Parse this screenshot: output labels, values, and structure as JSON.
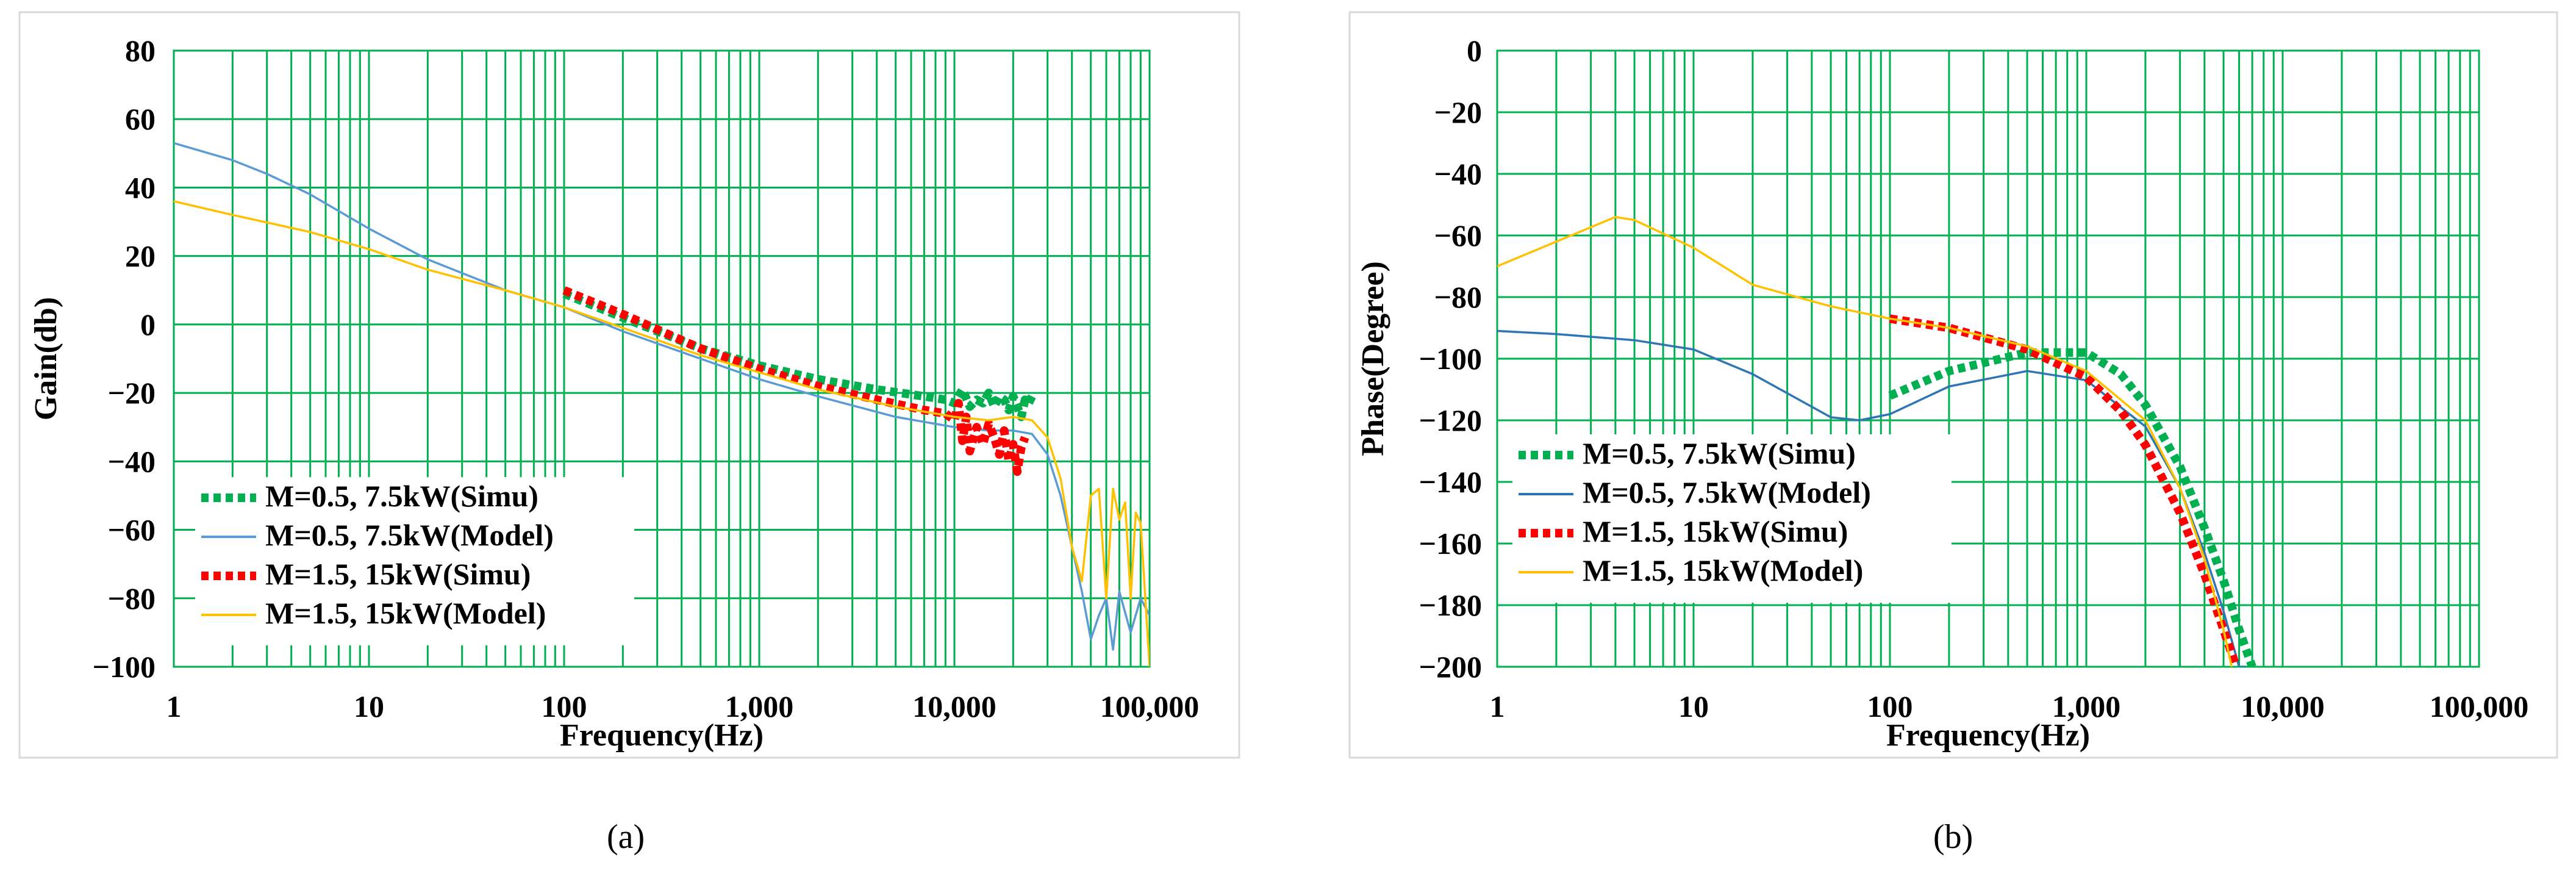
{
  "chart_data": [
    {
      "panel": "a",
      "type": "line",
      "x_scale": "log",
      "xlabel": "Frequency(Hz)",
      "ylabel": "Gain(db)",
      "xlim": [
        1,
        100000
      ],
      "ylim": [
        -100,
        80
      ],
      "x_ticks": [
        1,
        10,
        100,
        1000,
        10000,
        100000
      ],
      "x_tick_labels": [
        "1",
        "10",
        "100",
        "1,000",
        "10,000",
        "100,000"
      ],
      "y_ticks": [
        -100,
        -80,
        -60,
        -40,
        -20,
        0,
        20,
        40,
        60,
        80
      ],
      "y_tick_labels": [
        "−100",
        "−80",
        "−60",
        "−40",
        "−20",
        "0",
        "20",
        "40",
        "60",
        "80"
      ],
      "grid": true,
      "legend_position": "bottom-left",
      "series": [
        {
          "name": "M=0.5, 7.5kW(Simu)",
          "color": "#00b050",
          "style": "dotted-thick",
          "x": [
            100,
            200,
            500,
            1000,
            2000,
            4000,
            7000,
            9000,
            10000,
            11000,
            12000,
            13000,
            14000,
            15000,
            16000,
            17000,
            18000,
            19000,
            20000,
            21000,
            22000,
            23000,
            24000,
            25000
          ],
          "y": [
            9,
            2,
            -7,
            -12,
            -16,
            -19,
            -21,
            -22,
            -23,
            -19,
            -24,
            -22,
            -23,
            -20,
            -24,
            -21,
            -22,
            -25,
            -21,
            -24,
            -27,
            -22,
            -23,
            -21
          ]
        },
        {
          "name": "M=0.5, 7.5kW(Model)",
          "color": "#5b9bd5",
          "style": "thin",
          "x": [
            1,
            2,
            3,
            5,
            10,
            20,
            50,
            100,
            200,
            500,
            1000,
            2000,
            5000,
            10000,
            15000,
            20000,
            25000,
            30000,
            35000,
            40000,
            45000,
            50000,
            55000,
            60000,
            65000,
            70000,
            80000,
            90000,
            100000
          ],
          "y": [
            53,
            48,
            44,
            38,
            28,
            19,
            10,
            5,
            -2,
            -10,
            -16,
            -21,
            -27,
            -30,
            -31,
            -31,
            -32,
            -38,
            -50,
            -65,
            -78,
            -92,
            -85,
            -80,
            -95,
            -78,
            -90,
            -80,
            -85
          ]
        },
        {
          "name": "M=1.5, 15kW(Simu)",
          "color": "#ff0000",
          "style": "dotted-thick",
          "x": [
            100,
            200,
            500,
            1000,
            2000,
            4000,
            7000,
            9000,
            10000,
            10500,
            11000,
            11500,
            12000,
            13000,
            14000,
            15000,
            16000,
            17000,
            18000,
            19000,
            20000,
            21000,
            22000,
            23000
          ],
          "y": [
            10,
            3,
            -7,
            -13,
            -18,
            -22,
            -25,
            -26,
            -28,
            -23,
            -34,
            -27,
            -37,
            -30,
            -35,
            -29,
            -33,
            -38,
            -31,
            -40,
            -35,
            -43,
            -36,
            -33
          ]
        },
        {
          "name": "M=1.5, 15kW(Model)",
          "color": "#ffc000",
          "style": "thin",
          "x": [
            1,
            2,
            5,
            10,
            20,
            50,
            100,
            200,
            500,
            1000,
            2000,
            5000,
            10000,
            15000,
            20000,
            25000,
            30000,
            35000,
            40000,
            45000,
            50000,
            55000,
            60000,
            65000,
            70000,
            75000,
            80000,
            85000,
            90000,
            100000
          ],
          "y": [
            36,
            32,
            27,
            22,
            16,
            10,
            5,
            -1,
            -9,
            -14,
            -19,
            -24,
            -27,
            -28,
            -27,
            -28,
            -33,
            -45,
            -65,
            -75,
            -50,
            -48,
            -80,
            -48,
            -57,
            -52,
            -80,
            -55,
            -58,
            -100
          ]
        }
      ]
    },
    {
      "panel": "b",
      "type": "line",
      "x_scale": "log",
      "xlabel": "Frequency(Hz)",
      "ylabel": "Phase(Degree)",
      "xlim": [
        1,
        100000
      ],
      "ylim": [
        -200,
        0
      ],
      "x_ticks": [
        1,
        10,
        100,
        1000,
        10000,
        100000
      ],
      "x_tick_labels": [
        "1",
        "10",
        "100",
        "1,000",
        "10,000",
        "100,000"
      ],
      "y_ticks": [
        -200,
        -180,
        -160,
        -140,
        -120,
        -100,
        -80,
        -60,
        -40,
        -20,
        0
      ],
      "y_tick_labels": [
        "−200",
        "−180",
        "−160",
        "−140",
        "−120",
        "−100",
        "−80",
        "−60",
        "−40",
        "−20",
        "0"
      ],
      "grid": true,
      "legend_position": "bottom-left",
      "series": [
        {
          "name": "M=0.5, 7.5kW(Simu)",
          "color": "#00b050",
          "style": "dotted-thick",
          "x": [
            100,
            200,
            500,
            1000,
            1500,
            2000,
            3000,
            4000,
            5000,
            6000,
            7000
          ],
          "y": [
            -112,
            -104,
            -98,
            -98,
            -105,
            -115,
            -135,
            -155,
            -172,
            -188,
            -200
          ]
        },
        {
          "name": "M=0.5, 7.5kW(Model)",
          "color": "#2e75b6",
          "style": "thin",
          "x": [
            1,
            2,
            5,
            10,
            20,
            50,
            70,
            100,
            200,
            500,
            1000,
            2000,
            3000,
            4000,
            5000,
            6000,
            6500
          ],
          "y": [
            -91,
            -92,
            -94,
            -97,
            -105,
            -119,
            -120,
            -118,
            -109,
            -104,
            -107,
            -122,
            -142,
            -163,
            -182,
            -200,
            -200
          ]
        },
        {
          "name": "M=1.5, 15kW(Simu)",
          "color": "#ff0000",
          "style": "dotted-thick",
          "x": [
            100,
            200,
            500,
            1000,
            1500,
            2000,
            3000,
            4000,
            5000,
            5800
          ],
          "y": [
            -87,
            -90,
            -97,
            -106,
            -117,
            -128,
            -150,
            -170,
            -188,
            -200
          ]
        },
        {
          "name": "M=1.5, 15kW(Model)",
          "color": "#ffc000",
          "style": "thin",
          "x": [
            1,
            2,
            4,
            5,
            10,
            20,
            50,
            100,
            200,
            500,
            1000,
            2000,
            3000,
            4000,
            5000,
            5500
          ],
          "y": [
            -70,
            -62,
            -54,
            -55,
            -64,
            -76,
            -83,
            -87,
            -90,
            -96,
            -104,
            -120,
            -142,
            -165,
            -188,
            -200
          ]
        }
      ]
    }
  ],
  "captions": {
    "a": "(a)",
    "b": "(b)"
  }
}
